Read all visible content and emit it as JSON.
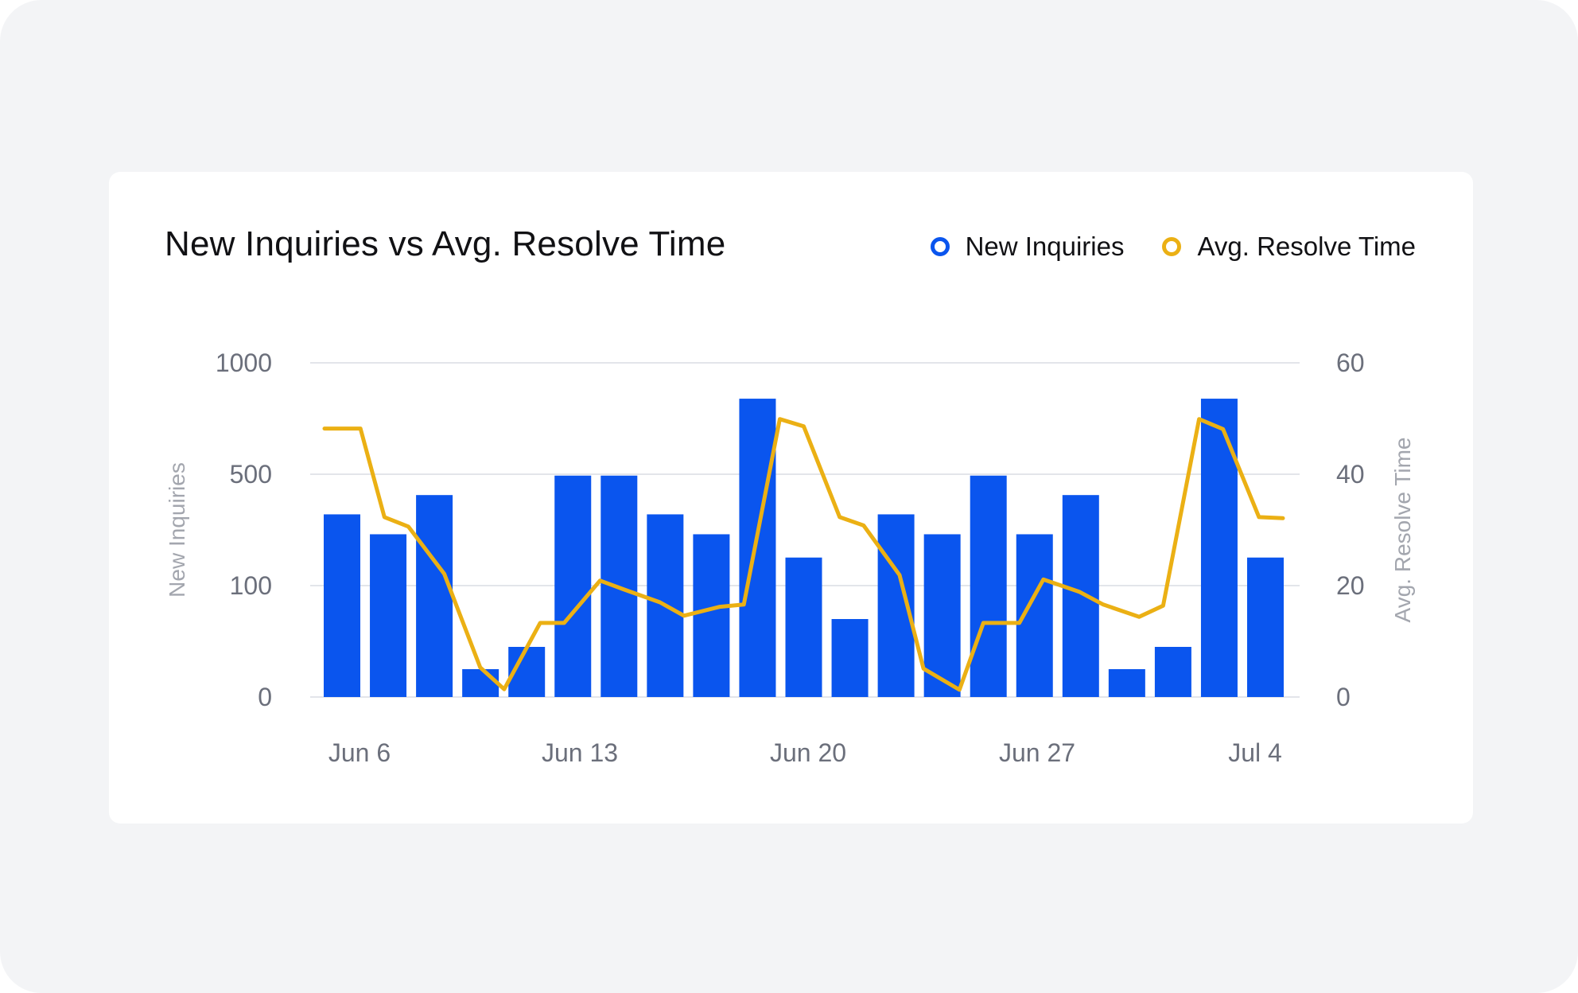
{
  "colors": {
    "bar": "#0a55ee",
    "line": "#ebb014",
    "grid": "#e3e5ea"
  },
  "chart_data": {
    "type": "bar",
    "title": "New Inquiries vs Avg. Resolve Time",
    "legend": [
      "New Inquiries",
      "Avg. Resolve Time"
    ],
    "x_tick_labels": [
      "Jun 6",
      "Jun 13",
      "Jun 20",
      "Jun 27",
      "Jul 4"
    ],
    "y_left": {
      "label": "New Inquiries",
      "ticks": [
        "0",
        "100",
        "500",
        "1000"
      ],
      "scale": "log"
    },
    "y_right": {
      "label": "Avg. Resolve Time",
      "ticks": [
        "0",
        "20",
        "40",
        "60"
      ],
      "ylim": [
        0,
        60
      ]
    },
    "series": [
      {
        "name": "New Inquiries",
        "type": "bar",
        "values": [
          280,
          210,
          370,
          25,
          45,
          490,
          490,
          280,
          210,
          800,
          150,
          70,
          280,
          210,
          490,
          210,
          370,
          25,
          45,
          800,
          150
        ]
      },
      {
        "name": "Avg. Resolve Time",
        "type": "line",
        "points": [
          [
            0,
            48.2
          ],
          [
            0.6,
            48.2
          ],
          [
            1,
            32.3
          ],
          [
            1.4,
            30.6
          ],
          [
            2,
            22.1
          ],
          [
            2.6,
            5.3
          ],
          [
            3,
            1.4
          ],
          [
            3.6,
            13.3
          ],
          [
            4,
            13.3
          ],
          [
            4.6,
            20.9
          ],
          [
            5,
            19.3
          ],
          [
            5.6,
            17.0
          ],
          [
            6,
            14.6
          ],
          [
            6.6,
            16.2
          ],
          [
            7,
            16.6
          ],
          [
            7.6,
            49.9
          ],
          [
            8,
            48.6
          ],
          [
            8.6,
            32.3
          ],
          [
            9,
            30.8
          ],
          [
            9.6,
            21.9
          ],
          [
            10,
            5.1
          ],
          [
            10.6,
            1.3
          ],
          [
            11,
            13.3
          ],
          [
            11.6,
            13.3
          ],
          [
            12,
            21.1
          ],
          [
            12.6,
            18.9
          ],
          [
            13,
            16.6
          ],
          [
            13.6,
            14.4
          ],
          [
            14,
            16.4
          ],
          [
            14.6,
            49.9
          ],
          [
            15,
            48.1
          ],
          [
            15.6,
            32.3
          ],
          [
            16,
            32.1
          ]
        ]
      }
    ]
  }
}
